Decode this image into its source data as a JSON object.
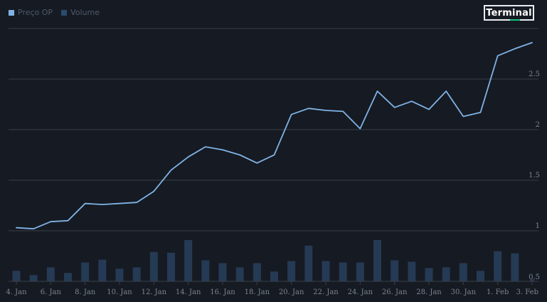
{
  "brand": {
    "label": "Terminal",
    "accent": "#19c37d"
  },
  "colors": {
    "background": "#161a22",
    "price_line": "#7fb3e6",
    "volume_bar": "#253a54",
    "grid": "#3a3f48",
    "axis_text": "#7b8594"
  },
  "chart_data": {
    "type": "line",
    "legend": [
      {
        "name": "Preço OP",
        "color": "#7fb3e6"
      },
      {
        "name": "Volume",
        "color": "#2c4a6e"
      }
    ],
    "legend_position": "top-left",
    "x_tick_labels": [
      "4. Jan",
      "6. Jan",
      "8. Jan",
      "10. Jan",
      "12. Jan",
      "14. Jan",
      "16. Jan",
      "18. Jan",
      "20. Jan",
      "22. Jan",
      "24. Jan",
      "26. Jan",
      "28. Jan",
      "30. Jan",
      "1. Feb",
      "3. Feb"
    ],
    "y_ticks": [
      0.5,
      1,
      1.5,
      2,
      2.5
    ],
    "y_tick_labels": [
      "0.5",
      "1",
      "1.5",
      "2",
      "2.5"
    ],
    "ylim": [
      0.5,
      3.0
    ],
    "grid": true,
    "series": [
      {
        "name": "Preço OP",
        "kind": "line",
        "dates": [
          "2023-01-04",
          "2023-01-05",
          "2023-01-06",
          "2023-01-07",
          "2023-01-08",
          "2023-01-09",
          "2023-01-10",
          "2023-01-11",
          "2023-01-12",
          "2023-01-13",
          "2023-01-14",
          "2023-01-15",
          "2023-01-16",
          "2023-01-17",
          "2023-01-18",
          "2023-01-19",
          "2023-01-20",
          "2023-01-21",
          "2023-01-22",
          "2023-01-23",
          "2023-01-24",
          "2023-01-25",
          "2023-01-26",
          "2023-01-27",
          "2023-01-28",
          "2023-01-29",
          "2023-01-30",
          "2023-01-31",
          "2023-02-01",
          "2023-02-02",
          "2023-02-03"
        ],
        "values": [
          1.03,
          1.02,
          1.09,
          1.1,
          1.27,
          1.26,
          1.27,
          1.28,
          1.39,
          1.6,
          1.73,
          1.83,
          1.8,
          1.75,
          1.67,
          1.75,
          2.15,
          2.21,
          2.19,
          2.18,
          2.01,
          2.38,
          2.22,
          2.28,
          2.2,
          2.38,
          2.13,
          2.17,
          2.73,
          2.8,
          2.86
        ]
      },
      {
        "name": "Volume",
        "kind": "bar",
        "dates": [
          "2023-01-04",
          "2023-01-05",
          "2023-01-06",
          "2023-01-07",
          "2023-01-08",
          "2023-01-09",
          "2023-01-10",
          "2023-01-11",
          "2023-01-12",
          "2023-01-13",
          "2023-01-14",
          "2023-01-15",
          "2023-01-16",
          "2023-01-17",
          "2023-01-18",
          "2023-01-19",
          "2023-01-20",
          "2023-01-21",
          "2023-01-22",
          "2023-01-23",
          "2023-01-24",
          "2023-01-25",
          "2023-01-26",
          "2023-01-27",
          "2023-01-28",
          "2023-01-29",
          "2023-01-30",
          "2023-01-31",
          "2023-02-01",
          "2023-02-02",
          "2023-02-03"
        ],
        "relative_values": [
          0.15,
          0.09,
          0.2,
          0.12,
          0.27,
          0.31,
          0.18,
          0.2,
          0.42,
          0.41,
          0.59,
          0.3,
          0.26,
          0.2,
          0.26,
          0.14,
          0.29,
          0.51,
          0.29,
          0.27,
          0.27,
          0.59,
          0.3,
          0.28,
          0.19,
          0.2,
          0.26,
          0.15,
          0.43,
          0.4,
          0.03
        ]
      }
    ]
  }
}
